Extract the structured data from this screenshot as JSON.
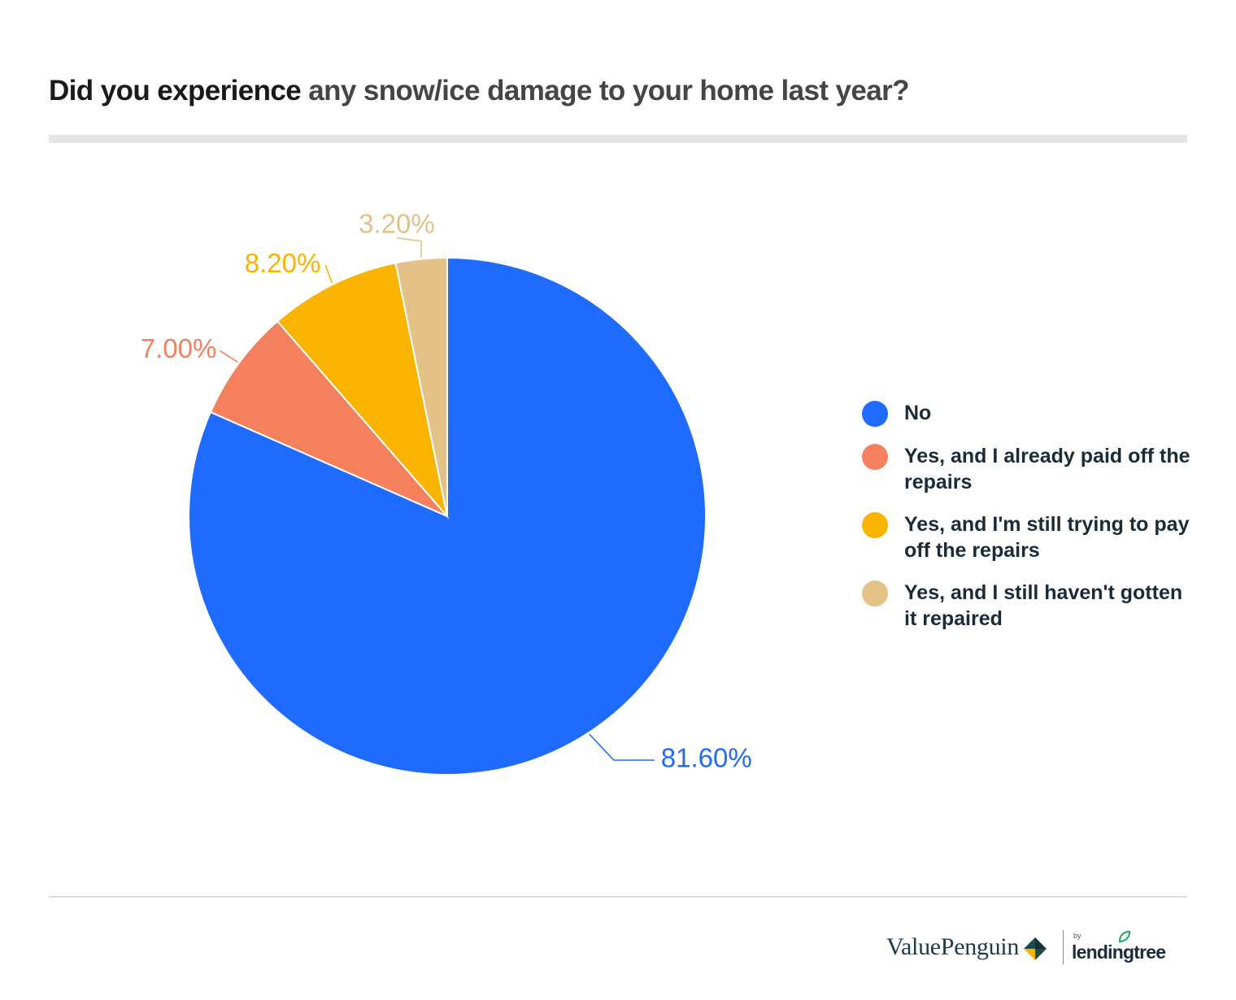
{
  "title": {
    "part1": "Did you experience",
    "part2": " any snow/ice damage to your home last year?"
  },
  "chart_data": {
    "type": "pie",
    "title": "Did you experience any snow/ice damage to your home last year?",
    "categories": [
      "No",
      "Yes, and I already paid off the repairs",
      "Yes, and I'm still trying to pay off the repairs",
      "Yes, and I still haven't gotten it repaired"
    ],
    "values": [
      81.6,
      7.0,
      8.2,
      3.2
    ],
    "labels": [
      "81.60%",
      "7.00%",
      "8.20%",
      "3.20%"
    ],
    "colors": [
      "#1f6bff",
      "#f5805d",
      "#fab400",
      "#e4c187"
    ],
    "legend_position": "right"
  },
  "footer": {
    "brand": "ValuePenguin",
    "by": "by",
    "partner": "lendingtree"
  }
}
